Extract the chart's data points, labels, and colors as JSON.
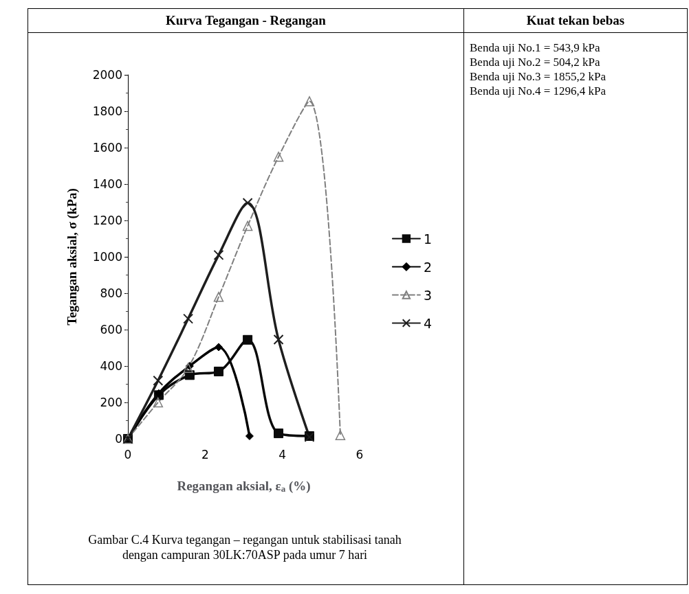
{
  "chart_data": {
    "type": "line",
    "title": "Kurva Tegangan - Regangan",
    "xlabel": "Regangan aksial, ε$_{a}$ (%)",
    "ylabel": "Tegangan aksial, σ (kPa)",
    "xlim": [
      0,
      6
    ],
    "xticks": [
      0,
      2,
      4,
      6
    ],
    "ylim": [
      0,
      2000
    ],
    "yticks": [
      0,
      200,
      400,
      600,
      800,
      1000,
      1200,
      1400,
      1600,
      1800,
      2000
    ],
    "grid": false,
    "legend": "right",
    "series": [
      {
        "name": "1",
        "color": "#0a0a0a",
        "marker": "square",
        "line_style": "solid",
        "x": [
          0,
          0.8,
          1.6,
          2.35,
          3.1,
          3.9,
          4.7
        ],
        "values": [
          0,
          240,
          350,
          370,
          544,
          30,
          15
        ]
      },
      {
        "name": "2",
        "color": "#000000",
        "marker": "diamond",
        "line_style": "solid",
        "x": [
          0,
          0.8,
          1.6,
          2.35,
          3.15
        ],
        "values": [
          0,
          250,
          400,
          504,
          15
        ]
      },
      {
        "name": "3",
        "color": "#7f7f7f",
        "marker": "triangle",
        "line_style": "dashed",
        "x": [
          0,
          0.78,
          1.56,
          2.35,
          3.1,
          3.9,
          4.7,
          5.5
        ],
        "values": [
          0,
          200,
          390,
          780,
          1170,
          1550,
          1855,
          20
        ]
      },
      {
        "name": "4",
        "color": "#1e1e1e",
        "marker": "cross",
        "line_style": "solid",
        "x": [
          0,
          0.78,
          1.56,
          2.35,
          3.1,
          3.9,
          4.7
        ],
        "values": [
          0,
          320,
          660,
          1010,
          1296,
          545,
          10
        ]
      }
    ],
    "annotations": [
      "Kuat tekan bebas",
      "Benda uji No.1 = 543,9 kPa",
      "Benda uji No.2 = 504,2 kPa",
      "Benda uji No.3 = 1855,2 kPa",
      "Benda uji No.4 = 1296,4 kPa",
      "Gambar C.4 Kurva tegangan – regangan untuk stabilisasi tanah dengan campuran 30LK:70ASP pada umur 7 hari"
    ]
  }
}
